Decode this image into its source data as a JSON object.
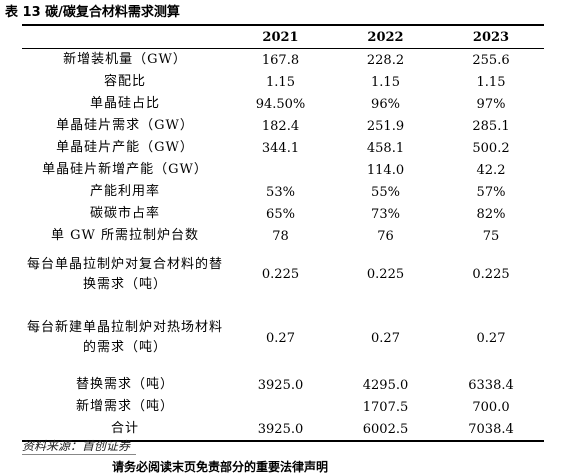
{
  "title": "表 13 碳/碳复合材料需求测算",
  "columns": [
    "",
    "2021",
    "2022",
    "2023"
  ],
  "rows": [
    {
      "label": "新增装机量（GW）",
      "v": [
        "167.8",
        "228.2",
        "255.6"
      ]
    },
    {
      "label": "容配比",
      "v": [
        "1.15",
        "1.15",
        "1.15"
      ]
    },
    {
      "label": "单晶硅占比",
      "v": [
        "94.50%",
        "96%",
        "97%"
      ]
    },
    {
      "label": "单晶硅片需求（GW）",
      "v": [
        "182.4",
        "251.9",
        "285.1"
      ]
    },
    {
      "label": "单晶硅片产能（GW）",
      "v": [
        "344.1",
        "458.1",
        "500.2"
      ]
    },
    {
      "label": "单晶硅片新增产能（GW）",
      "v": [
        "",
        "114.0",
        "42.2"
      ]
    },
    {
      "label": "产能利用率",
      "v": [
        "53%",
        "55%",
        "57%"
      ]
    },
    {
      "label": "碳碳市占率",
      "v": [
        "65%",
        "73%",
        "82%"
      ]
    },
    {
      "label": "单 GW 所需拉制炉台数",
      "v": [
        "78",
        "76",
        "75"
      ]
    },
    {
      "label": "每台单晶拉制炉对复合材料的替换需求（吨）",
      "v": [
        "0.225",
        "0.225",
        "0.225"
      ]
    },
    {
      "label": "每台新建单晶拉制炉对热场材料的需求（吨）",
      "v": [
        "0.27",
        "0.27",
        "0.27"
      ]
    },
    {
      "label": "替换需求（吨）",
      "v": [
        "3925.0",
        "4295.0",
        "6338.4"
      ]
    },
    {
      "label": "新增需求（吨）",
      "v": [
        "",
        "1707.5",
        "700.0"
      ]
    },
    {
      "label": "合计",
      "v": [
        "3925.0",
        "6002.5",
        "7038.4"
      ]
    }
  ],
  "source": "资料来源：首创证券",
  "footer": "请务必阅读末页免责部分的重要法律声明"
}
